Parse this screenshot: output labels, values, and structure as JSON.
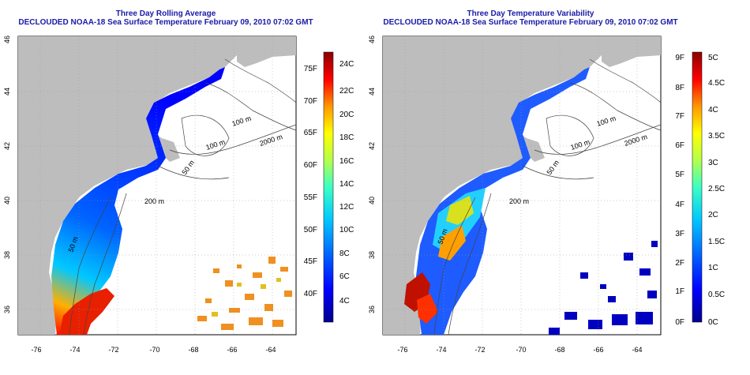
{
  "left_panel": {
    "title_line1": "Three Day Rolling Average",
    "title_line2": "DECLOUDED NOAA-18 Sea Surface Temperature February 09, 2010 07:02 GMT",
    "lon_ticks": [
      "-76",
      "-74",
      "-72",
      "-70",
      "-68",
      "-66",
      "-64"
    ],
    "lat_ticks": [
      "46",
      "44",
      "42",
      "40",
      "38",
      "36"
    ],
    "depth_labels": [
      "100 m",
      "100 m",
      "2000 m",
      "50 m",
      "200 m",
      "50 m"
    ],
    "colorbar": {
      "fahrenheit_labels": [
        "75F",
        "70F",
        "65F",
        "60F",
        "55F",
        "50F",
        "45F",
        "40F"
      ],
      "celsius_labels": [
        "24C",
        "22C",
        "20C",
        "18C",
        "16C",
        "14C",
        "12C",
        "10C",
        "8C",
        "6C",
        "4C"
      ],
      "range_c": [
        2.5,
        25
      ]
    }
  },
  "right_panel": {
    "title_line1": "Three Day Temperature Variability",
    "title_line2": "DECLOUDED NOAA-18 Sea Surface Temperature February 09, 2010 07:02 GMT",
    "lon_ticks": [
      "-76",
      "-74",
      "-72",
      "-70",
      "-68",
      "-66",
      "-64"
    ],
    "lat_ticks": [
      "46",
      "44",
      "42",
      "40",
      "38",
      "36"
    ],
    "depth_labels": [
      "100 m",
      "100 m",
      "2000 m",
      "50 m",
      "200 m",
      "50 m"
    ],
    "colorbar": {
      "fahrenheit_labels": [
        "9F",
        "8F",
        "7F",
        "6F",
        "5F",
        "4F",
        "3F",
        "2F",
        "1F",
        "0F"
      ],
      "celsius_labels": [
        "5C",
        "4.5C",
        "4C",
        "3.5C",
        "3C",
        "2.5C",
        "2C",
        "1.5C",
        "1C",
        "0.5C",
        "0C"
      ],
      "range_c": [
        0,
        5.1
      ]
    }
  },
  "colors": {
    "land": "#bdbdbd",
    "title": "#1a1aa8",
    "scale": [
      "#00008b",
      "#0000ff",
      "#0064ff",
      "#00c8ff",
      "#3cffc3",
      "#b4ff4b",
      "#ffff00",
      "#ff9600",
      "#ff0000",
      "#8b0000"
    ]
  }
}
